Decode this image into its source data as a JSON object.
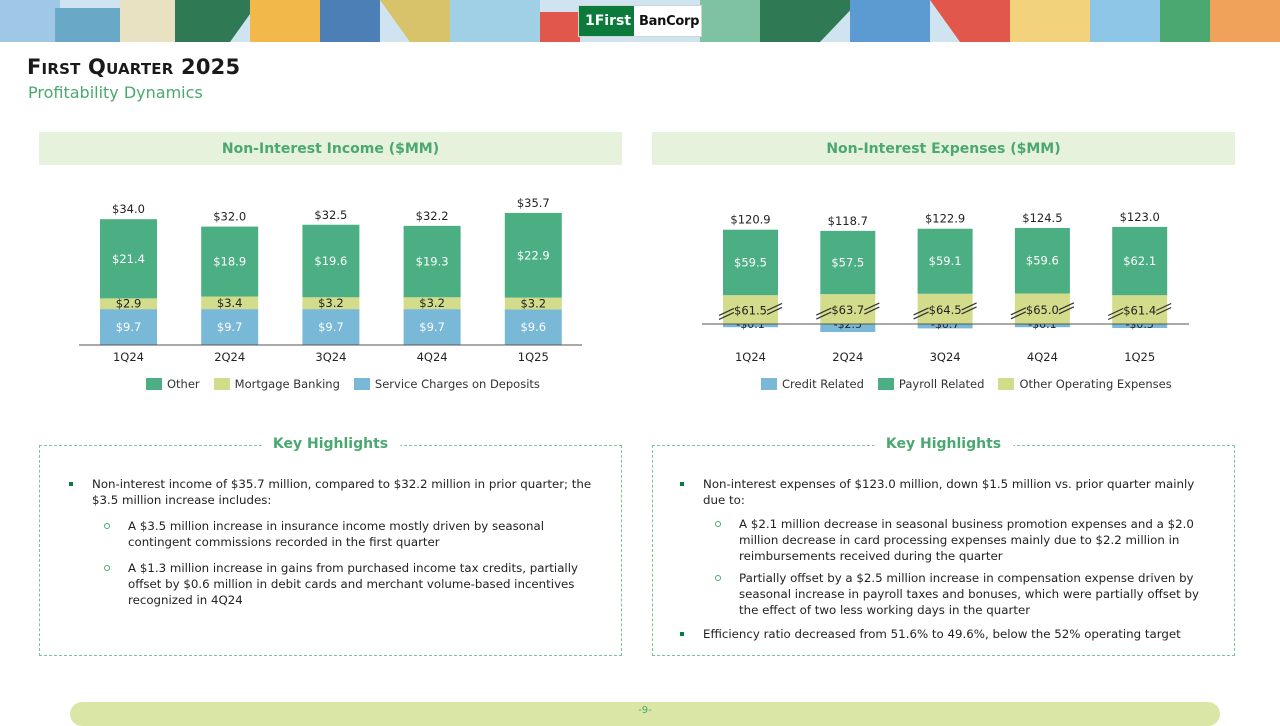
{
  "logo": {
    "part1": "1First",
    "part2": "BanCorp"
  },
  "header": {
    "title": "First Quarter 2025",
    "subtitle": "Profitability Dynamics"
  },
  "colors": {
    "other": "#4caf84",
    "mortgage": "#d3dc8a",
    "service": "#7ab8d8",
    "accent": "#4aa870"
  },
  "chart_data": [
    {
      "type": "bar",
      "stacked": true,
      "title": "Non-Interest Income ($MM)",
      "categories": [
        "1Q24",
        "2Q24",
        "3Q24",
        "4Q24",
        "1Q25"
      ],
      "series": [
        {
          "name": "Service Charges on Deposits",
          "values": [
            9.7,
            9.7,
            9.7,
            9.7,
            9.6
          ],
          "labels": [
            "$9.7",
            "$9.7",
            "$9.7",
            "$9.7",
            "$9.6"
          ]
        },
        {
          "name": "Mortgage Banking",
          "values": [
            2.9,
            3.4,
            3.2,
            3.2,
            3.2
          ],
          "labels": [
            "$2.9",
            "$3.4",
            "$3.2",
            "$3.2",
            "$3.2"
          ]
        },
        {
          "name": "Other",
          "values": [
            21.4,
            18.9,
            19.6,
            19.3,
            22.9
          ],
          "labels": [
            "$21.4",
            "$18.9",
            "$19.6",
            "$19.3",
            "$22.9"
          ]
        }
      ],
      "totals": [
        "$34.0",
        "$32.0",
        "$32.5",
        "$32.2",
        "$35.7"
      ],
      "legend": [
        "Other",
        "Mortgage Banking",
        "Service Charges on Deposits"
      ],
      "legend_position": "bottom"
    },
    {
      "type": "bar",
      "stacked": true,
      "broken_axis": true,
      "title": "Non-Interest Expenses ($MM)",
      "categories": [
        "1Q24",
        "2Q24",
        "3Q24",
        "4Q24",
        "1Q25"
      ],
      "series": [
        {
          "name": "Credit Related",
          "values": [
            -0.1,
            -2.5,
            -0.7,
            -0.1,
            -0.5
          ],
          "labels": [
            "-$0.1",
            "-$2.5",
            "-$0.7",
            "-$0.1",
            "-$0.5"
          ]
        },
        {
          "name": "Other Operating Expenses",
          "values": [
            61.5,
            63.7,
            64.5,
            65.0,
            61.4
          ],
          "labels": [
            "$61.5",
            "$63.7",
            "$64.5",
            "$65.0",
            "$61.4"
          ]
        },
        {
          "name": "Payroll Related",
          "values": [
            59.5,
            57.5,
            59.1,
            59.6,
            62.1
          ],
          "labels": [
            "$59.5",
            "$57.5",
            "$59.1",
            "$59.6",
            "$62.1"
          ]
        }
      ],
      "totals": [
        "$120.9",
        "$118.7",
        "$122.9",
        "$124.5",
        "$123.0"
      ],
      "legend": [
        "Credit Related",
        "Payroll Related",
        "Other Operating Expenses"
      ],
      "legend_position": "bottom"
    }
  ],
  "highlights_left": {
    "title": "Key Highlights",
    "b1": "Non-interest income of $35.7 million, compared to $32.2 million in prior quarter; the $3.5 million increase includes:",
    "s1": "A $3.5 million increase in insurance income mostly driven by seasonal contingent commissions recorded in the first quarter",
    "s2": "A $1.3 million increase in gains from purchased income tax credits, partially offset by $0.6 million in debit cards and merchant volume-based incentives recognized in 4Q24"
  },
  "highlights_right": {
    "title": "Key Highlights",
    "b1": "Non-interest expenses of $123.0 million, down $1.5 million vs. prior quarter mainly due to:",
    "s1": "A $2.1 million decrease in seasonal business promotion expenses and a $2.0 million decrease in card processing expenses mainly due to $2.2 million in reimbursements received during the quarter",
    "s2": "Partially offset by a $2.5 million increase in compensation expense driven by seasonal increase in payroll taxes and bonuses, which were partially offset by the effect of two less working days in the quarter",
    "b2": "Efficiency ratio decreased from 51.6% to 49.6%, below the 52% operating target"
  },
  "footer": {
    "page": "-9-"
  }
}
